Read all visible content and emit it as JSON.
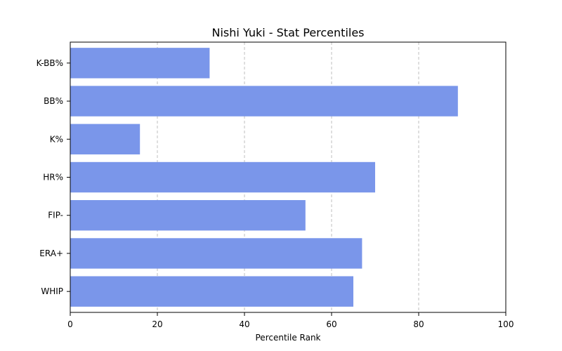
{
  "chart_data": {
    "type": "bar",
    "orientation": "horizontal",
    "title": "Nishi Yuki - Stat Percentiles",
    "xlabel": "Percentile Rank",
    "ylabel": "",
    "xlim": [
      0,
      100
    ],
    "xticks": [
      "0",
      "20",
      "40",
      "60",
      "80",
      "100"
    ],
    "categories": [
      "K-BB%",
      "BB%",
      "K%",
      "HR%",
      "FIP-",
      "ERA+",
      "WHIP"
    ],
    "values": [
      32,
      89,
      16,
      70,
      54,
      67,
      65
    ],
    "bar_color": "#7a96ea",
    "grid": "x-dashed",
    "legend": "none"
  }
}
